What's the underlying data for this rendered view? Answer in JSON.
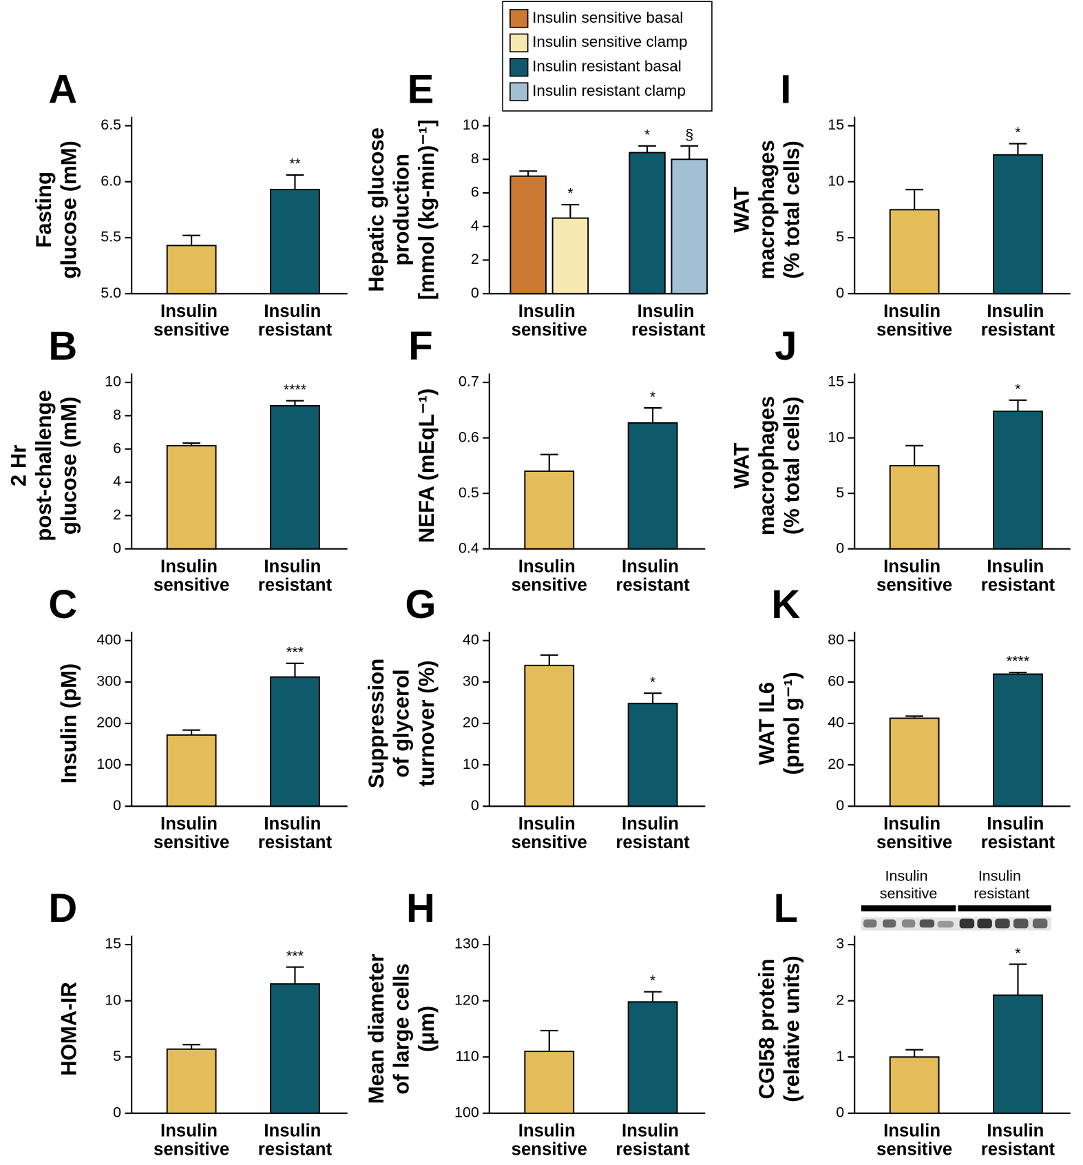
{
  "chart_data": [
    {
      "type": "bar",
      "panel": "A",
      "ylabel": [
        "Fasting",
        "glucose (mM)"
      ],
      "categories": [
        "Insulin sensitive",
        "Insulin resistant"
      ],
      "values": [
        5.43,
        5.93
      ],
      "errors": [
        0.09,
        0.13
      ],
      "annotations": [
        null,
        "**"
      ],
      "colors": [
        "#e4bd5a",
        "#0e5a6b"
      ],
      "ylim": [
        5.0,
        6.5
      ],
      "yticks": [
        {
          "value": 5.0,
          "label": "5.0"
        },
        5.5,
        {
          "value": 6.0,
          "label": "6.0"
        },
        6.5
      ]
    },
    {
      "type": "bar",
      "panel": "B",
      "ylabel": [
        "2 Hr",
        "post-challenge",
        "glucose (mM)"
      ],
      "categories": [
        "Insulin sensitive",
        "Insulin resistant"
      ],
      "values": [
        6.2,
        8.6
      ],
      "errors": [
        0.15,
        0.3
      ],
      "annotations": [
        null,
        "****"
      ],
      "colors": [
        "#e4bd5a",
        "#0e5a6b"
      ],
      "ylim": [
        0,
        10
      ],
      "yticks": [
        0,
        2,
        4,
        6,
        8,
        10
      ]
    },
    {
      "type": "bar",
      "panel": "C",
      "ylabel": [
        "Insulin (pM)"
      ],
      "categories": [
        "Insulin sensitive",
        "Insulin resistant"
      ],
      "values": [
        172,
        312
      ],
      "errors": [
        12,
        33
      ],
      "annotations": [
        null,
        "***"
      ],
      "colors": [
        "#e4bd5a",
        "#0e5a6b"
      ],
      "ylim": [
        0,
        400
      ],
      "yticks": [
        0,
        100,
        200,
        300,
        400
      ]
    },
    {
      "type": "bar",
      "panel": "D",
      "ylabel": [
        "HOMA-IR"
      ],
      "categories": [
        "Insulin sensitive",
        "Insulin resistant"
      ],
      "values": [
        5.7,
        11.5
      ],
      "errors": [
        0.4,
        1.5
      ],
      "annotations": [
        null,
        "***"
      ],
      "colors": [
        "#e4bd5a",
        "#0e5a6b"
      ],
      "ylim": [
        0,
        15
      ],
      "yticks": [
        0,
        5,
        10,
        15
      ]
    },
    {
      "type": "bar",
      "panel": "E",
      "ylabel": [
        "Hepatic glucose",
        "production",
        "[mmol (kg-min)⁻¹]"
      ],
      "categories": [
        "Insulin sensitive",
        "Insulin resistant"
      ],
      "series": [
        {
          "name": "Insulin sensitive basal",
          "color": "#cc7a33",
          "values": [
            7.0,
            null
          ],
          "errors": [
            0.3,
            null
          ],
          "annotations": [
            null,
            null
          ]
        },
        {
          "name": "Insulin sensitive clamp",
          "color": "#f6eab2",
          "values": [
            4.5,
            null
          ],
          "errors": [
            0.8,
            null
          ],
          "annotations": [
            "*",
            null
          ]
        },
        {
          "name": "Insulin resistant basal",
          "color": "#0e5a6b",
          "values": [
            null,
            8.4
          ],
          "errors": [
            null,
            0.4
          ],
          "annotations": [
            null,
            "*"
          ]
        },
        {
          "name": "Insulin resistant clamp",
          "color": "#a3bfd3",
          "values": [
            null,
            8.0
          ],
          "errors": [
            null,
            0.8
          ],
          "annotations": [
            null,
            "§"
          ]
        }
      ],
      "ylim": [
        0,
        10
      ],
      "yticks": [
        0,
        2,
        4,
        6,
        8,
        10
      ]
    },
    {
      "type": "bar",
      "panel": "F",
      "ylabel": [
        "NEFA (mEqL⁻¹)"
      ],
      "categories": [
        "Insulin sensitive",
        "Insulin resistant"
      ],
      "values": [
        0.54,
        0.627
      ],
      "errors": [
        0.03,
        0.027
      ],
      "annotations": [
        null,
        "*"
      ],
      "colors": [
        "#e4bd5a",
        "#0e5a6b"
      ],
      "ylim": [
        0.4,
        0.7
      ],
      "yticks": [
        0.4,
        0.5,
        0.6,
        0.7
      ]
    },
    {
      "type": "bar",
      "panel": "G",
      "ylabel": [
        "Suppression",
        "of glycerol",
        "turnover (%)"
      ],
      "categories": [
        "Insulin sensitive",
        "Insulin resistant"
      ],
      "values": [
        34,
        24.8
      ],
      "errors": [
        2.5,
        2.5
      ],
      "annotations": [
        null,
        "*"
      ],
      "colors": [
        "#e4bd5a",
        "#0e5a6b"
      ],
      "ylim": [
        0,
        40
      ],
      "yticks": [
        0,
        10,
        20,
        30,
        40
      ]
    },
    {
      "type": "bar",
      "panel": "H",
      "ylabel": [
        "Mean diameter",
        "of large cells",
        "(μm)"
      ],
      "categories": [
        "Insulin sensitive",
        "Insulin resistant"
      ],
      "values": [
        111,
        119.8
      ],
      "errors": [
        3.7,
        1.8
      ],
      "annotations": [
        null,
        "*"
      ],
      "colors": [
        "#e4bd5a",
        "#0e5a6b"
      ],
      "ylim": [
        100,
        130
      ],
      "yticks": [
        100,
        110,
        120,
        130
      ]
    },
    {
      "type": "bar",
      "panel": "I",
      "ylabel": [
        "WAT",
        "macrophages",
        "(% total cells)"
      ],
      "categories": [
        "Insulin sensitive",
        "Insulin resistant"
      ],
      "values": [
        7.5,
        12.4
      ],
      "errors": [
        1.8,
        1.0
      ],
      "annotations": [
        null,
        "*"
      ],
      "colors": [
        "#e4bd5a",
        "#0e5a6b"
      ],
      "ylim": [
        0,
        15
      ],
      "yticks": [
        0,
        5,
        10,
        15
      ]
    },
    {
      "type": "bar",
      "panel": "J",
      "ylabel": [
        "WAT",
        "macrophages",
        "(% total cells)"
      ],
      "categories": [
        "Insulin sensitive",
        "Insulin resistant"
      ],
      "values": [
        7.5,
        12.4
      ],
      "errors": [
        1.8,
        1.0
      ],
      "annotations": [
        null,
        "*"
      ],
      "colors": [
        "#e4bd5a",
        "#0e5a6b"
      ],
      "ylim": [
        0,
        15
      ],
      "yticks": [
        0,
        5,
        10,
        15
      ]
    },
    {
      "type": "bar",
      "panel": "K",
      "ylabel": [
        "WAT IL6",
        "(pmol g⁻¹)"
      ],
      "categories": [
        "Insulin sensitive",
        "Insulin resistant"
      ],
      "values": [
        42.5,
        63.8
      ],
      "errors": [
        1.0,
        0.8
      ],
      "annotations": [
        null,
        "****"
      ],
      "colors": [
        "#e4bd5a",
        "#0e5a6b"
      ],
      "ylim": [
        0,
        80
      ],
      "yticks": [
        0,
        20,
        40,
        60,
        80
      ]
    },
    {
      "type": "bar",
      "panel": "L",
      "ylabel": [
        "CGI58 protein",
        "(relative units)"
      ],
      "blot_labels": [
        "Insulin sensitive",
        "Insulin resistant"
      ],
      "categories": [
        "Insulin sensitive",
        "Insulin resistant"
      ],
      "values": [
        1.0,
        2.1
      ],
      "errors": [
        0.13,
        0.55
      ],
      "annotations": [
        null,
        "*"
      ],
      "colors": [
        "#e4bd5a",
        "#0e5a6b"
      ],
      "ylim": [
        0,
        3
      ],
      "yticks": [
        0,
        1,
        2,
        3
      ]
    }
  ]
}
